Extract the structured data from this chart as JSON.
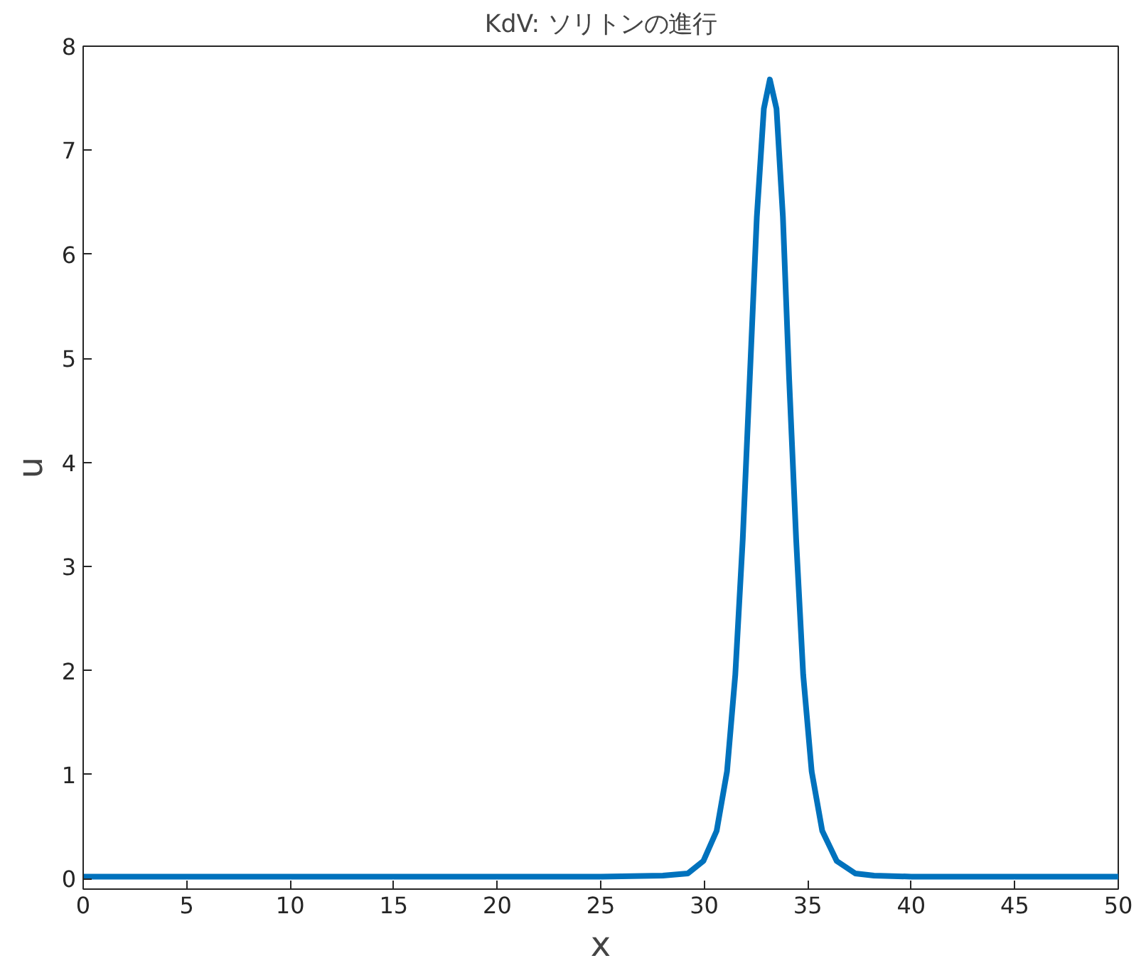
{
  "chart_data": {
    "type": "line",
    "title": "KdV: ソリトンの進行",
    "xlabel": "x",
    "ylabel": "u",
    "x": [
      0,
      5,
      10,
      15,
      20,
      25,
      28,
      29.2,
      29.96,
      30.6,
      31.1,
      31.5,
      31.86,
      32.2,
      32.54,
      32.88,
      33.17,
      33.49,
      33.8,
      34.1,
      34.44,
      34.78,
      35.19,
      35.7,
      36.4,
      37.3,
      38.2,
      40,
      45,
      50
    ],
    "series": [
      {
        "color": "#0072bd",
        "values": [
          0.02,
          0.02,
          0.02,
          0.02,
          0.02,
          0.02,
          0.03,
          0.05,
          0.17,
          0.46,
          1.03,
          1.96,
          3.26,
          4.81,
          6.36,
          7.4,
          7.68,
          7.4,
          6.36,
          4.81,
          3.26,
          1.96,
          1.03,
          0.46,
          0.17,
          0.05,
          0.03,
          0.02,
          0.02,
          0.02
        ]
      }
    ],
    "xlim": [
      0,
      50
    ],
    "ylim": [
      -0.1,
      8
    ],
    "xticks": [
      0,
      5,
      10,
      15,
      20,
      25,
      30,
      35,
      40,
      45,
      50
    ],
    "yticks": [
      0,
      1,
      2,
      3,
      4,
      5,
      6,
      7,
      8
    ],
    "grid": false,
    "marker": "none",
    "line_style": "solid"
  }
}
